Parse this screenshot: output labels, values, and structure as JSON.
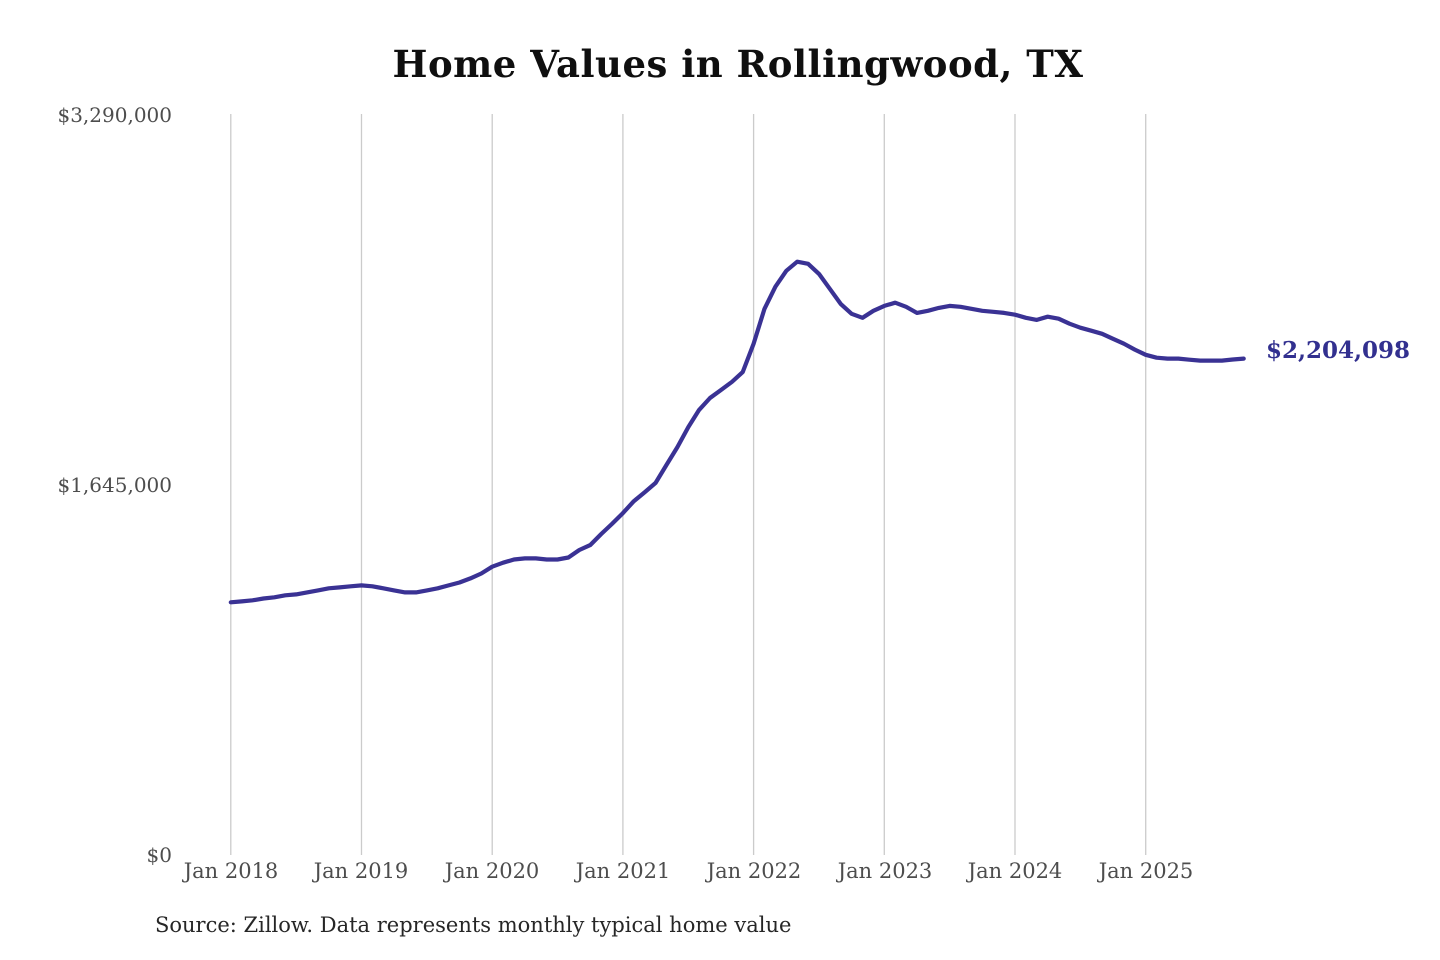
{
  "title": "Home Values in Rollingwood, TX",
  "source_note": "Source: Zillow. Data represents monthly typical home value",
  "end_label": "$2,204,098",
  "colors": {
    "line": "#3a3294",
    "end_label": "#32308f",
    "gridline": "#cbcbcb",
    "axis_text": "#4d4d4d",
    "title_text": "#0f0f0f",
    "source_text": "#262626",
    "background": "#ffffff"
  },
  "y_axis": {
    "tick_labels": [
      "$3,290,000",
      "$1,645,000",
      "$0"
    ],
    "tick_values": [
      3290000,
      1645000,
      0
    ]
  },
  "x_axis": {
    "tick_labels": [
      "Jan 2018",
      "Jan 2019",
      "Jan 2020",
      "Jan 2021",
      "Jan 2022",
      "Jan 2023",
      "Jan 2024",
      "Jan 2025"
    ]
  },
  "chart_data": {
    "type": "line",
    "title": "Home Values in Rollingwood, TX",
    "series_name": "Monthly typical home value",
    "xlabel": "",
    "ylabel": "",
    "ylim": [
      0,
      3290000
    ],
    "y_ticks": [
      0,
      1645000,
      3290000
    ],
    "x_tick_labels": [
      "Jan 2018",
      "Jan 2019",
      "Jan 2020",
      "Jan 2021",
      "Jan 2022",
      "Jan 2023",
      "Jan 2024",
      "Jan 2025"
    ],
    "grid": "vertical-only",
    "legend": "none",
    "x_start": "2018-01",
    "x_freq": "monthly",
    "x": [
      "2018-01",
      "2018-02",
      "2018-03",
      "2018-04",
      "2018-05",
      "2018-06",
      "2018-07",
      "2018-08",
      "2018-09",
      "2018-10",
      "2018-11",
      "2018-12",
      "2019-01",
      "2019-02",
      "2019-03",
      "2019-04",
      "2019-05",
      "2019-06",
      "2019-07",
      "2019-08",
      "2019-09",
      "2019-10",
      "2019-11",
      "2019-12",
      "2020-01",
      "2020-02",
      "2020-03",
      "2020-04",
      "2020-05",
      "2020-06",
      "2020-07",
      "2020-08",
      "2020-09",
      "2020-10",
      "2020-11",
      "2020-12",
      "2021-01",
      "2021-02",
      "2021-03",
      "2021-04",
      "2021-05",
      "2021-06",
      "2021-07",
      "2021-08",
      "2021-09",
      "2021-10",
      "2021-11",
      "2021-12",
      "2022-01",
      "2022-02",
      "2022-03",
      "2022-04",
      "2022-05",
      "2022-06",
      "2022-07",
      "2022-08",
      "2022-09",
      "2022-10",
      "2022-11",
      "2022-12",
      "2023-01",
      "2023-02",
      "2023-03",
      "2023-04",
      "2023-05",
      "2023-06",
      "2023-07",
      "2023-08",
      "2023-09",
      "2023-10",
      "2023-11",
      "2023-12",
      "2024-01",
      "2024-02",
      "2024-03",
      "2024-04",
      "2024-05",
      "2024-06",
      "2024-07",
      "2024-08",
      "2024-09",
      "2024-10",
      "2024-11",
      "2024-12",
      "2025-01",
      "2025-02",
      "2025-03",
      "2025-04",
      "2025-05",
      "2025-06",
      "2025-07",
      "2025-08",
      "2025-09",
      "2025-10"
    ],
    "values": [
      1122000,
      1126000,
      1131000,
      1139000,
      1144000,
      1153000,
      1157000,
      1166000,
      1175000,
      1184000,
      1188000,
      1193000,
      1197000,
      1193000,
      1184000,
      1175000,
      1166000,
      1166000,
      1175000,
      1184000,
      1197000,
      1210000,
      1228000,
      1250000,
      1280000,
      1298000,
      1312000,
      1317000,
      1317000,
      1312000,
      1312000,
      1321000,
      1354000,
      1376000,
      1425000,
      1470000,
      1518000,
      1571000,
      1611000,
      1652000,
      1732000,
      1811000,
      1900000,
      1976000,
      2029000,
      2064000,
      2100000,
      2144000,
      2270000,
      2425000,
      2523000,
      2594000,
      2634000,
      2625000,
      2580000,
      2514000,
      2447000,
      2403000,
      2385000,
      2416000,
      2438000,
      2452000,
      2434000,
      2407000,
      2416000,
      2429000,
      2438000,
      2434000,
      2425000,
      2416000,
      2412000,
      2407000,
      2399000,
      2385000,
      2376000,
      2390000,
      2381000,
      2359000,
      2341000,
      2328000,
      2314000,
      2292000,
      2270000,
      2244000,
      2221000,
      2208000,
      2204000,
      2204000,
      2199000,
      2195000,
      2195000,
      2195000,
      2200000,
      2204098
    ],
    "last_value": 2204098,
    "last_value_label": "$2,204,098"
  }
}
